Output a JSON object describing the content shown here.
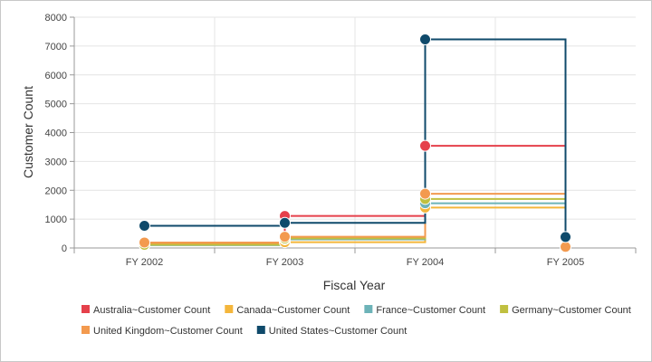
{
  "chart_data": {
    "type": "line",
    "step": true,
    "title": "",
    "xlabel": "Fiscal Year",
    "ylabel": "Customer Count",
    "categories": [
      "FY 2002",
      "FY 2003",
      "FY 2004",
      "FY 2005"
    ],
    "ylim": [
      0,
      8000
    ],
    "yticks": [
      0,
      1000,
      2000,
      3000,
      4000,
      5000,
      6000,
      7000,
      8000
    ],
    "grid": true,
    "legend_position": "bottom",
    "series": [
      {
        "name": "Australia~Customer Count",
        "color": "#e5404b",
        "values": [
          150,
          1110,
          3540,
          30
        ]
      },
      {
        "name": "Canada~Customer Count",
        "color": "#f4b63b",
        "values": [
          120,
          200,
          1400,
          20
        ]
      },
      {
        "name": "France~Customer Count",
        "color": "#6db3b8",
        "values": [
          100,
          300,
          1550,
          20
        ]
      },
      {
        "name": "Germany~Customer Count",
        "color": "#c0c040",
        "values": [
          110,
          330,
          1700,
          20
        ]
      },
      {
        "name": "United Kingdom~Customer Count",
        "color": "#f39a4f",
        "values": [
          190,
          390,
          1880,
          40
        ]
      },
      {
        "name": "United States~Customer Count",
        "color": "#0f4a6b",
        "values": [
          770,
          870,
          7230,
          380
        ]
      }
    ]
  }
}
